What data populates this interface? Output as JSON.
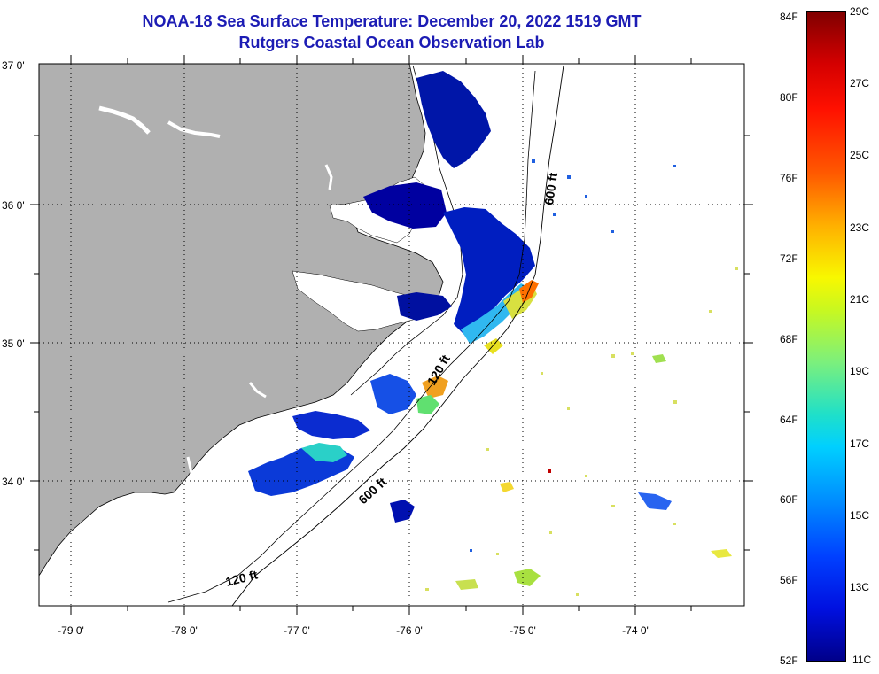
{
  "title": {
    "line1": "NOAA-18 Sea Surface Temperature:  December 20, 2022 1519 GMT",
    "line2": "Rutgers Coastal Ocean Observation Lab"
  },
  "map": {
    "lat_labels": [
      "37 0'",
      "36 0'",
      "35 0'",
      "34 0'"
    ],
    "lon_labels": [
      "-79 0'",
      "-78 0'",
      "-77 0'",
      "-76 0'",
      "-75 0'",
      "-74 0'"
    ],
    "isobaths": [
      {
        "name": "600 ft",
        "label": "600 ft"
      },
      {
        "name": "120 ft",
        "label": "120 ft"
      }
    ],
    "colors": {
      "land": "#b0b0b0",
      "ocean": "#ffffff",
      "grid": "#000000"
    }
  },
  "colorbar": {
    "fahrenheit_labels": [
      "84F",
      "80F",
      "76F",
      "72F",
      "68F",
      "64F",
      "60F",
      "56F",
      "52F"
    ],
    "celsius_labels": [
      "29C",
      "27C",
      "25C",
      "23C",
      "21C",
      "19C",
      "17C",
      "15C",
      "13C",
      "11C"
    ]
  }
}
